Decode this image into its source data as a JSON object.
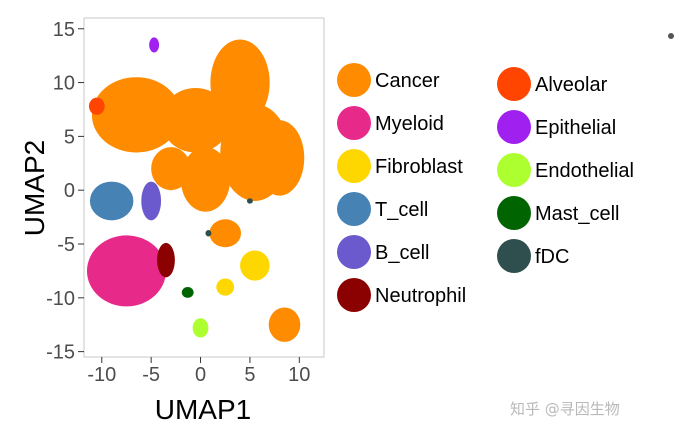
{
  "chart_data": {
    "type": "scatter",
    "title": "",
    "xlabel": "UMAP1",
    "ylabel": "UMAP2",
    "xlim": [
      -11.8,
      12.5
    ],
    "ylim": [
      -15.5,
      16.0
    ],
    "xticks": [
      -10,
      -5,
      0,
      5,
      10
    ],
    "yticks": [
      -15,
      -10,
      -5,
      0,
      5,
      10,
      15
    ],
    "xtick_labels": [
      "-10",
      "-5",
      "0",
      "5",
      "10"
    ],
    "ytick_labels": [
      "-15",
      "-10",
      "-5",
      "0",
      "5",
      "10",
      "15"
    ],
    "grid": false,
    "legend_position": "right",
    "series": [
      {
        "name": "Cancer",
        "color": "#FF8C00",
        "clusters": [
          {
            "x": -6.5,
            "y": 7.0,
            "rx": 4.5,
            "ry": 3.5
          },
          {
            "x": 0.5,
            "y": 1.0,
            "rx": 2.5,
            "ry": 3.0
          },
          {
            "x": 5.5,
            "y": 3.5,
            "rx": 3.5,
            "ry": 4.5
          },
          {
            "x": 8.0,
            "y": 3.0,
            "rx": 2.5,
            "ry": 3.5
          },
          {
            "x": 4.0,
            "y": 10.0,
            "rx": 3.0,
            "ry": 4.0
          },
          {
            "x": -0.5,
            "y": 6.5,
            "rx": 3.5,
            "ry": 3.0
          },
          {
            "x": -3.0,
            "y": 2.0,
            "rx": 2.0,
            "ry": 2.0
          },
          {
            "x": 2.5,
            "y": -4.0,
            "rx": 1.6,
            "ry": 1.3
          },
          {
            "x": 8.5,
            "y": -12.5,
            "rx": 1.6,
            "ry": 1.6
          }
        ]
      },
      {
        "name": "Myeloid",
        "color": "#E7298A",
        "clusters": [
          {
            "x": -7.5,
            "y": -7.5,
            "rx": 4.0,
            "ry": 3.3
          }
        ]
      },
      {
        "name": "Fibroblast",
        "color": "#FFD700",
        "clusters": [
          {
            "x": 5.5,
            "y": -7.0,
            "rx": 1.5,
            "ry": 1.4
          },
          {
            "x": 2.5,
            "y": -9.0,
            "rx": 0.9,
            "ry": 0.8
          }
        ]
      },
      {
        "name": "T_cell",
        "color": "#4682B4",
        "clusters": [
          {
            "x": -9.0,
            "y": -1.0,
            "rx": 2.2,
            "ry": 1.8
          }
        ]
      },
      {
        "name": "B_cell",
        "color": "#6A5ACD",
        "clusters": [
          {
            "x": -5.0,
            "y": -1.0,
            "rx": 1.0,
            "ry": 1.8
          }
        ]
      },
      {
        "name": "Neutrophil",
        "color": "#8B0000",
        "clusters": [
          {
            "x": -3.5,
            "y": -6.5,
            "rx": 0.9,
            "ry": 1.6
          }
        ]
      },
      {
        "name": "Alveolar",
        "color": "#FF4500",
        "clusters": [
          {
            "x": -10.5,
            "y": 7.8,
            "rx": 0.8,
            "ry": 0.8
          }
        ]
      },
      {
        "name": "Epithelial",
        "color": "#A020F0",
        "clusters": [
          {
            "x": -4.7,
            "y": 13.5,
            "rx": 0.5,
            "ry": 0.7
          }
        ]
      },
      {
        "name": "Endothelial",
        "color": "#ADFF2F",
        "clusters": [
          {
            "x": 0.0,
            "y": -12.8,
            "rx": 0.8,
            "ry": 0.9
          }
        ]
      },
      {
        "name": "Mast_cell",
        "color": "#006400",
        "clusters": [
          {
            "x": -1.3,
            "y": -9.5,
            "rx": 0.6,
            "ry": 0.5
          }
        ]
      },
      {
        "name": "fDC",
        "color": "#2F4F4F",
        "clusters": [
          {
            "x": 0.8,
            "y": -4.0,
            "rx": 0.3,
            "ry": 0.3
          },
          {
            "x": 5.0,
            "y": -1.0,
            "rx": 0.3,
            "ry": 0.25
          }
        ]
      }
    ]
  },
  "watermark": "知乎 @寻因生物"
}
